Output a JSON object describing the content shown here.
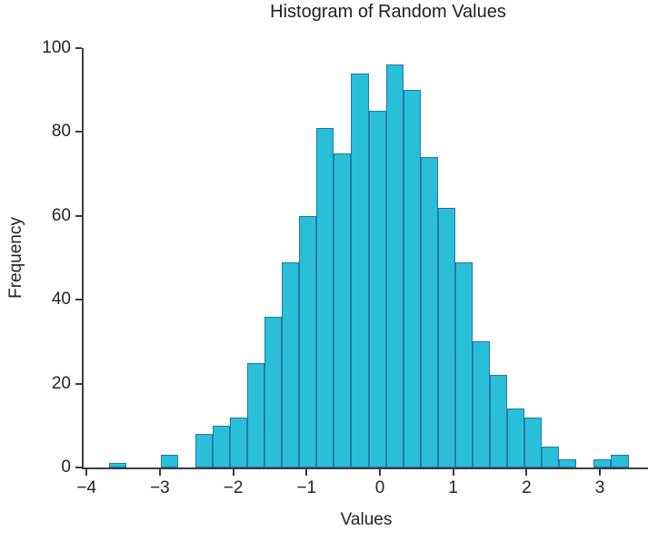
{
  "title": "Histogram of Random Values",
  "axes": {
    "xlabel": "Values",
    "ylabel": "Frequency",
    "x_tick_labels": [
      "−4",
      "−3",
      "−2",
      "−1",
      "0",
      "1",
      "2",
      "3"
    ],
    "x_tick_values": [
      -4,
      -3,
      -2,
      -1,
      0,
      1,
      2,
      3
    ],
    "y_tick_labels": [
      "0",
      "20",
      "40",
      "60",
      "80",
      "100"
    ],
    "y_tick_values": [
      0,
      20,
      40,
      60,
      80,
      100
    ]
  },
  "chart_data": {
    "type": "bar",
    "subtype": "histogram",
    "title": "Histogram of Random Values",
    "xlabel": "Values",
    "ylabel": "Frequency",
    "bin_start": -3.699,
    "bin_width": 0.2363,
    "counts": [
      1,
      0,
      0,
      3,
      0,
      8,
      10,
      12,
      25,
      36,
      49,
      60,
      81,
      75,
      94,
      85,
      96,
      90,
      74,
      62,
      49,
      30,
      22,
      14,
      12,
      5,
      2,
      0,
      2,
      3
    ],
    "xlim": [
      -4.04,
      3.656
    ],
    "ylim": [
      0,
      100
    ],
    "grid": false,
    "legend": false
  },
  "colors": {
    "bar_fill": "#29bfd9",
    "bar_edge": "#2478a8",
    "axis": "#3d3d3d",
    "text": "#242424"
  }
}
